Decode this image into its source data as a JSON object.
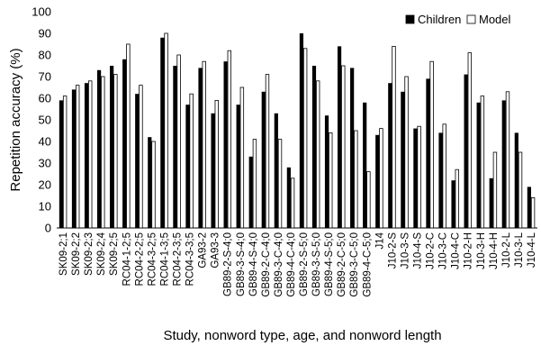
{
  "chart_data": {
    "type": "bar",
    "xlabel": "Study, nonword type, age, and nonword length",
    "ylabel": "Repetition accuracy (%)",
    "ylim": [
      0,
      100
    ],
    "yticks": [
      0,
      10,
      20,
      30,
      40,
      50,
      60,
      70,
      80,
      90,
      100
    ],
    "legend_position": "top-right",
    "colors": {
      "Children": "#000000",
      "Model": "#ffffff"
    },
    "categories": [
      "SK09-2;1",
      "SK09-2;2",
      "SK09-2;3",
      "SK09-2;4",
      "SK09-2;5",
      "RC04-1-2;5",
      "RC04-2-2;5",
      "RC04-3-2;5",
      "RC04-1-3;5",
      "RC04-2-3;5",
      "RC04-3-3;5",
      "GA93-2",
      "GA93-3",
      "GB89-2-S-4;0",
      "GB89-3-S-4;0",
      "GB89-4-S-4;0",
      "GB89-2-C-4;0",
      "GB89-3-C-4;0",
      "GB89-4-C-4;0",
      "GB89-2-S-5;0",
      "GB89-3-S-5;0",
      "GB89-4-S-5;0",
      "GB89-2-C-5;0",
      "GB89-3-C-5;0",
      "GB89-4-C-5;0",
      "J14",
      "J10-2-S",
      "J10-3-S",
      "J10-4-S",
      "J10-2-C",
      "J10-3-C",
      "J10-4-C",
      "J10-2-H",
      "J10-3-H",
      "J10-4-H",
      "J10-2-L",
      "J10-3-L",
      "J10-4-L"
    ],
    "series": [
      {
        "name": "Children",
        "values": [
          59,
          64,
          67,
          73,
          75,
          78,
          62,
          42,
          88,
          75,
          57,
          74,
          53,
          77,
          57,
          33,
          63,
          53,
          28,
          90,
          75,
          52,
          84,
          74,
          58,
          43,
          67,
          63,
          46,
          69,
          44,
          22,
          71,
          58,
          23,
          59,
          44,
          19
        ]
      },
      {
        "name": "Model",
        "values": [
          61,
          66,
          68,
          70,
          71,
          85,
          66,
          40,
          90,
          80,
          62,
          77,
          59,
          82,
          65,
          41,
          71,
          41,
          23,
          83,
          68,
          44,
          75,
          45,
          26,
          46,
          84,
          70,
          47,
          77,
          48,
          27,
          81,
          61,
          35,
          63,
          35,
          14
        ]
      }
    ]
  }
}
